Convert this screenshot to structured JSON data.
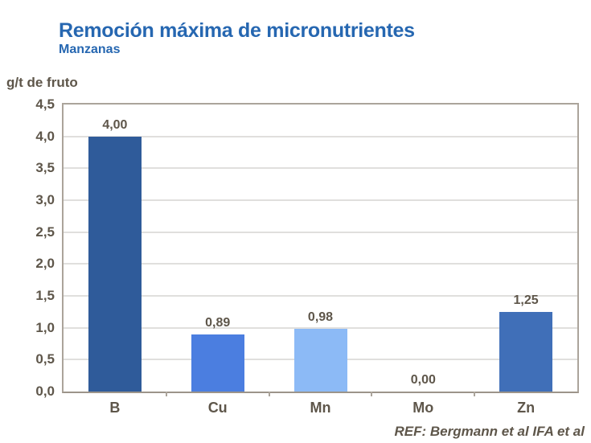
{
  "header": {
    "title": "Remoción máxima de micronutrientes",
    "subtitle": "Manzanas"
  },
  "footer": {
    "reference": "REF: Bergmann et al IFA et al"
  },
  "colors": {
    "title_blue": "#2667B1",
    "axis_text": "#5E564A",
    "gridline": "#E0DFDD",
    "plot_border": "#ABA49B"
  },
  "chart_data": {
    "type": "bar",
    "title": "Remoción máxima de micronutrientes",
    "subtitle": "Manzanas",
    "ylabel": "g/t de fruto",
    "xlabel": "",
    "categories": [
      "B",
      "Cu",
      "Mn",
      "Mo",
      "Zn"
    ],
    "values": [
      4.0,
      0.89,
      0.98,
      0.0,
      1.25
    ],
    "value_labels": [
      "4,00",
      "0,89",
      "0,98",
      "0,00",
      "1,25"
    ],
    "bar_colors": [
      "#2F5B9A",
      "#4B7EE0",
      "#8CBAF6",
      null,
      "#406FB8"
    ],
    "ylim": [
      0,
      4.5
    ],
    "ytick_step": 0.5,
    "ytick_labels": [
      "0,0",
      "0,5",
      "1,0",
      "1,5",
      "2,0",
      "2,5",
      "3,0",
      "3,5",
      "4,0",
      "4,5"
    ],
    "grid": true,
    "legend": false
  }
}
